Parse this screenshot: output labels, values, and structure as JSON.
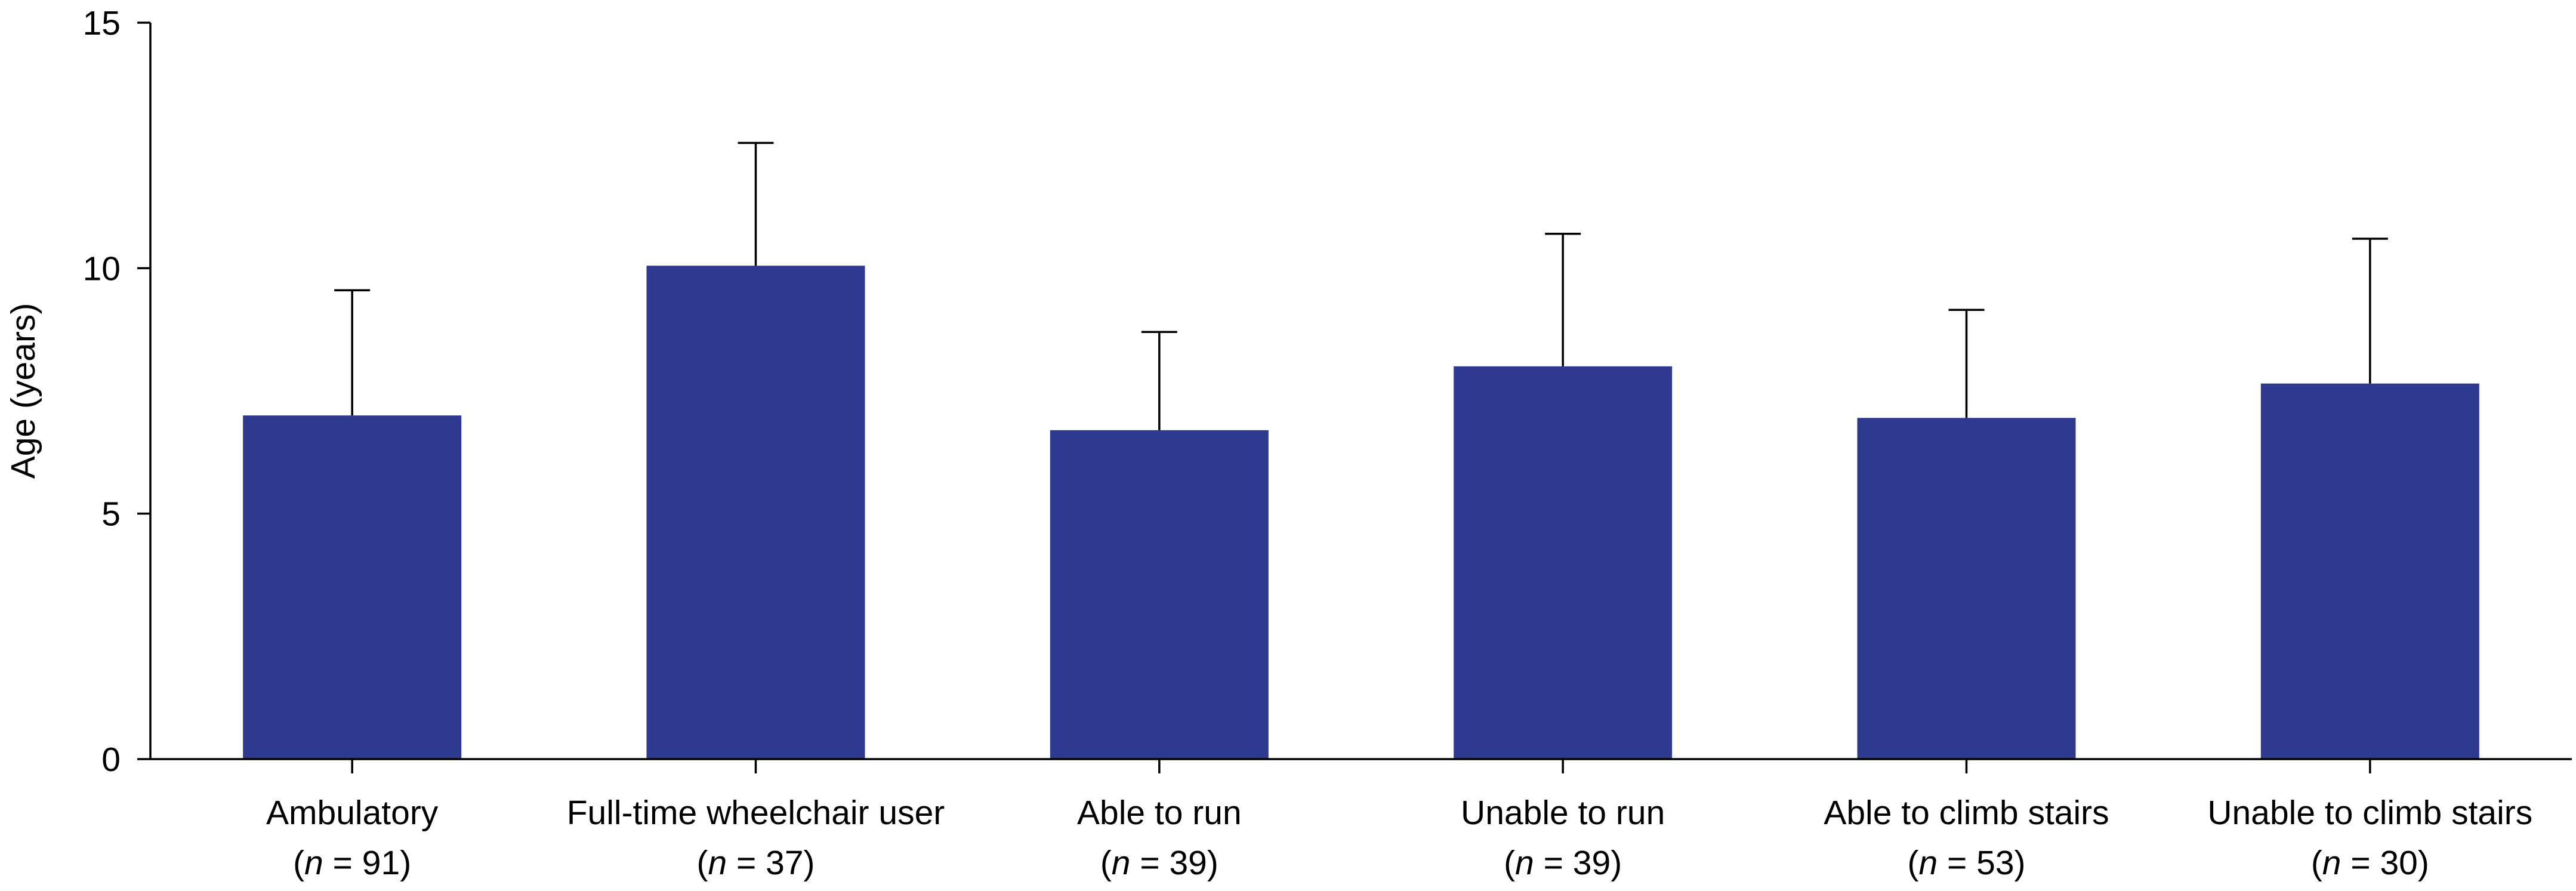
{
  "chart_data": {
    "type": "bar",
    "title": "",
    "xlabel": "",
    "ylabel": "Age (years)",
    "ylim": [
      0,
      15
    ],
    "yticks": [
      0,
      5,
      10,
      15
    ],
    "grid": false,
    "bar_color": "#2e3a8f",
    "error_bar_color": "#000000",
    "categories": [
      "Ambulatory",
      "Full-time wheelchair user",
      "Able to run",
      "Unable to run",
      "Able to climb stairs",
      "Unable to climb stairs"
    ],
    "n_label_prefix": "n",
    "n_values": [
      91,
      37,
      39,
      39,
      53,
      30
    ],
    "values": [
      7.0,
      10.05,
      6.7,
      8.0,
      6.95,
      7.65
    ],
    "error_upper": [
      9.55,
      12.55,
      8.7,
      10.7,
      9.15,
      10.6
    ]
  }
}
